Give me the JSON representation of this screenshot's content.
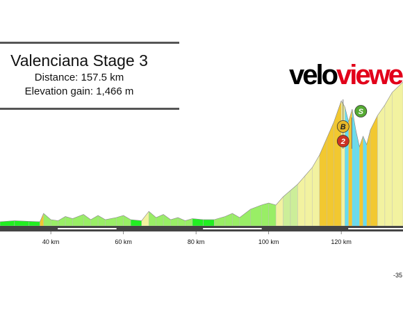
{
  "header": {
    "title": "Valenciana Stage 3",
    "distance": "Distance: 157.5 km",
    "elevation": "Elevation gain: 1,466 m"
  },
  "brand": {
    "part1": "velo",
    "part2": "viewe"
  },
  "colors": {
    "flat": "#22ee22",
    "moderate": "#f2f2a0",
    "climb": "#f2c830",
    "steep": "#66ddee",
    "road": "#444444",
    "bonus": "#e8b828",
    "sprint": "#55aa33",
    "kom": "#cc3322"
  },
  "markers": [
    {
      "label": "S",
      "km": 125,
      "type": "sprint"
    },
    {
      "label": "B",
      "km": 120.5,
      "type": "bonus"
    },
    {
      "label": "2",
      "km": 120.5,
      "type": "kom"
    }
  ],
  "footer_text": "-35",
  "chart_data": {
    "type": "area",
    "xlabel": "",
    "ylabel": "",
    "x_ticks": [
      "40 km",
      "60 km",
      "80 km",
      "100 km",
      "120 km"
    ],
    "x_tick_values": [
      40,
      60,
      80,
      100,
      120
    ],
    "xlim": [
      26,
      137
    ],
    "ylim": [
      0,
      1000
    ],
    "points": [
      {
        "km": 26,
        "elev": 20
      },
      {
        "km": 30,
        "elev": 25
      },
      {
        "km": 34,
        "elev": 22
      },
      {
        "km": 37,
        "elev": 20
      },
      {
        "km": 38,
        "elev": 60
      },
      {
        "km": 40,
        "elev": 30
      },
      {
        "km": 42,
        "elev": 25
      },
      {
        "km": 44,
        "elev": 45
      },
      {
        "km": 46,
        "elev": 35
      },
      {
        "km": 49,
        "elev": 55
      },
      {
        "km": 51,
        "elev": 30
      },
      {
        "km": 53,
        "elev": 50
      },
      {
        "km": 55,
        "elev": 30
      },
      {
        "km": 58,
        "elev": 40
      },
      {
        "km": 60,
        "elev": 50
      },
      {
        "km": 62,
        "elev": 30
      },
      {
        "km": 65,
        "elev": 25
      },
      {
        "km": 67,
        "elev": 70
      },
      {
        "km": 69,
        "elev": 40
      },
      {
        "km": 71,
        "elev": 55
      },
      {
        "km": 73,
        "elev": 30
      },
      {
        "km": 75,
        "elev": 40
      },
      {
        "km": 77,
        "elev": 25
      },
      {
        "km": 79,
        "elev": 35
      },
      {
        "km": 82,
        "elev": 30
      },
      {
        "km": 85,
        "elev": 30
      },
      {
        "km": 88,
        "elev": 45
      },
      {
        "km": 90,
        "elev": 60
      },
      {
        "km": 92,
        "elev": 40
      },
      {
        "km": 95,
        "elev": 80
      },
      {
        "km": 98,
        "elev": 100
      },
      {
        "km": 100,
        "elev": 110
      },
      {
        "km": 102,
        "elev": 100
      },
      {
        "km": 104,
        "elev": 140
      },
      {
        "km": 106,
        "elev": 170
      },
      {
        "km": 108,
        "elev": 200
      },
      {
        "km": 110,
        "elev": 240
      },
      {
        "km": 112,
        "elev": 280
      },
      {
        "km": 114,
        "elev": 340
      },
      {
        "km": 116,
        "elev": 420
      },
      {
        "km": 118,
        "elev": 500
      },
      {
        "km": 120,
        "elev": 600
      },
      {
        "km": 121,
        "elev": 570
      },
      {
        "km": 122,
        "elev": 500
      },
      {
        "km": 123,
        "elev": 560
      },
      {
        "km": 124,
        "elev": 460
      },
      {
        "km": 125,
        "elev": 380
      },
      {
        "km": 126,
        "elev": 430
      },
      {
        "km": 127,
        "elev": 390
      },
      {
        "km": 128,
        "elev": 460
      },
      {
        "km": 130,
        "elev": 530
      },
      {
        "km": 132,
        "elev": 580
      },
      {
        "km": 134,
        "elev": 640
      },
      {
        "km": 137,
        "elev": 690
      }
    ]
  }
}
